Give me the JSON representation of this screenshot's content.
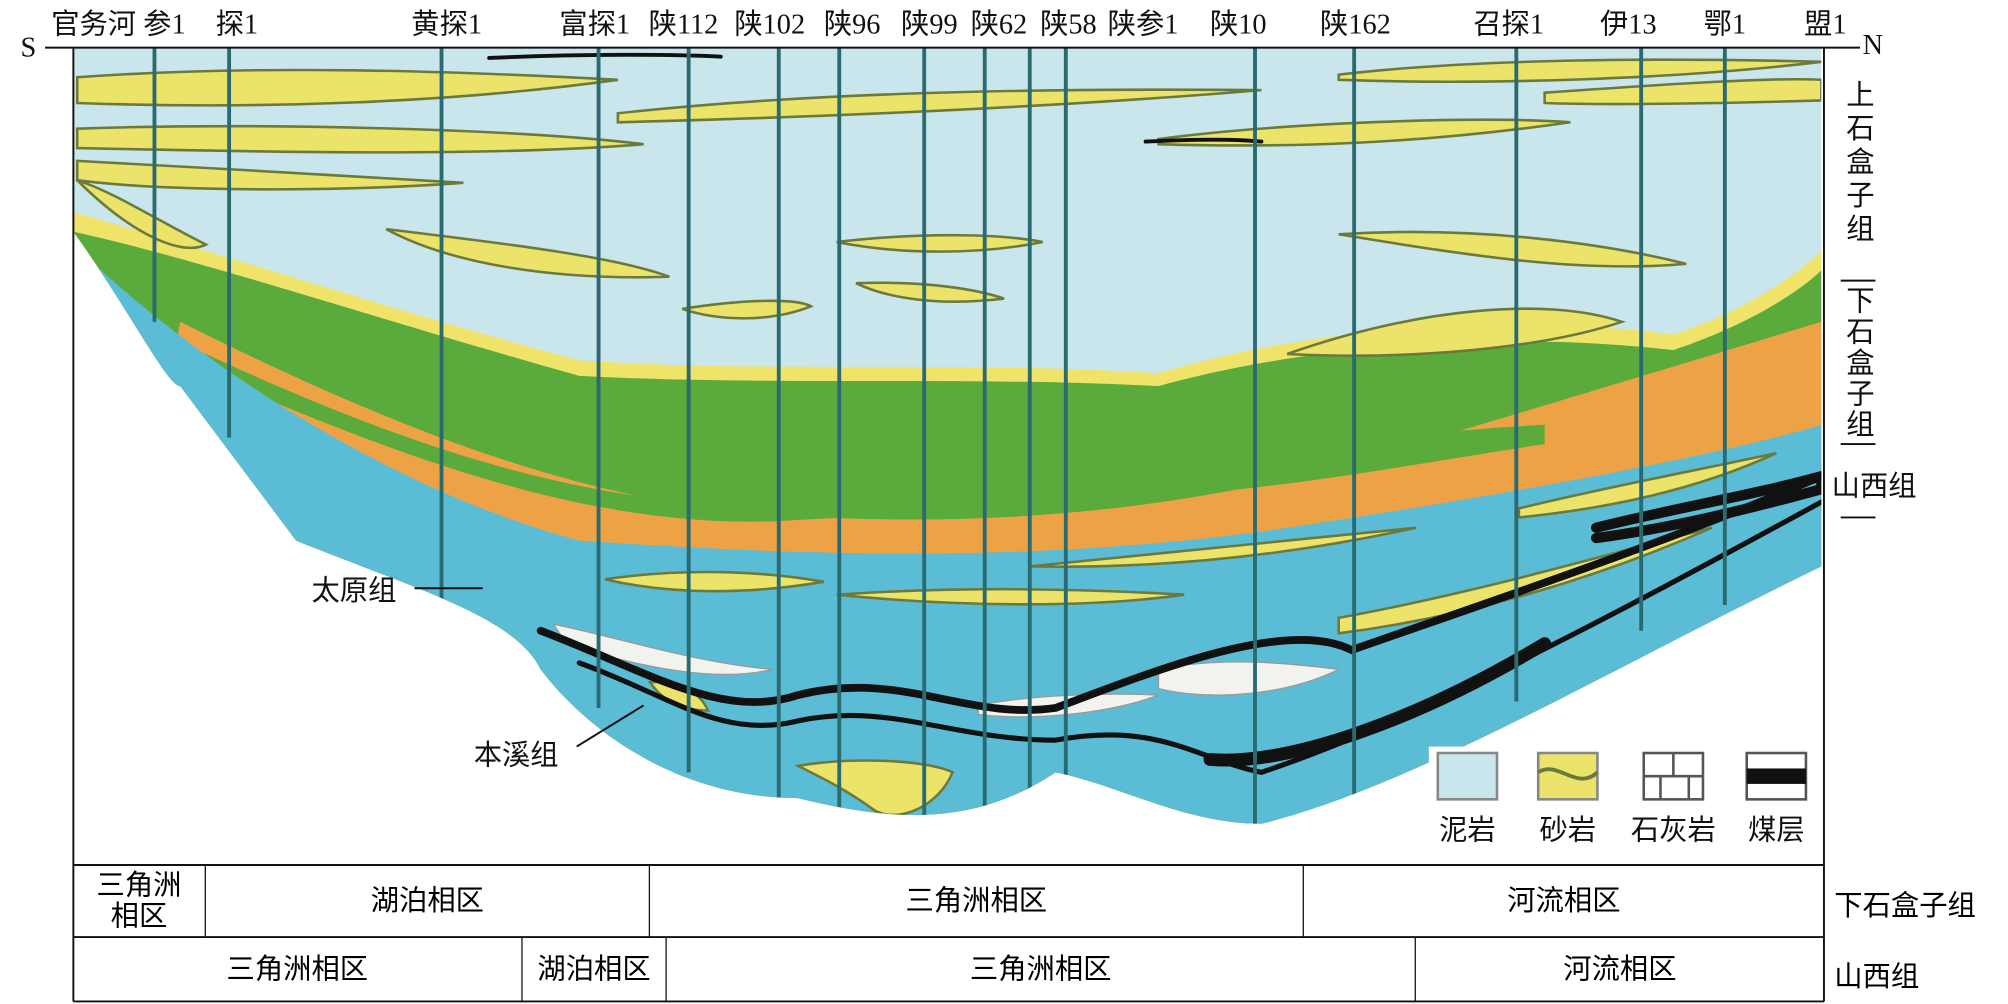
{
  "header": {
    "south": "S",
    "north": "N"
  },
  "wells": [
    "官务河 参1",
    "探1",
    "黄探1",
    "富探1",
    "陕112",
    "陕102",
    "陕96",
    "陕99",
    "陕62",
    "陕58",
    "陕参1",
    "陕10",
    "陕162",
    "召探1",
    "伊13",
    "鄂1",
    "盟1"
  ],
  "formations": {
    "upper": "上石盒子组",
    "lower": "下石盒子组",
    "shanxi": "山西组",
    "taiyuan": "太原组",
    "benxi": "本溪组"
  },
  "legend": [
    "泥岩",
    "砂岩",
    "石灰岩",
    "煤层"
  ],
  "table": {
    "rows": [
      {
        "label": "下石盒子组",
        "cells": [
          "三角洲相区",
          "湖泊相区",
          "三角洲相区",
          "河流相区"
        ]
      },
      {
        "label": "山西组",
        "cells": [
          "三角洲相区",
          "湖泊相区",
          "三角洲相区",
          "河流相区"
        ]
      }
    ]
  }
}
